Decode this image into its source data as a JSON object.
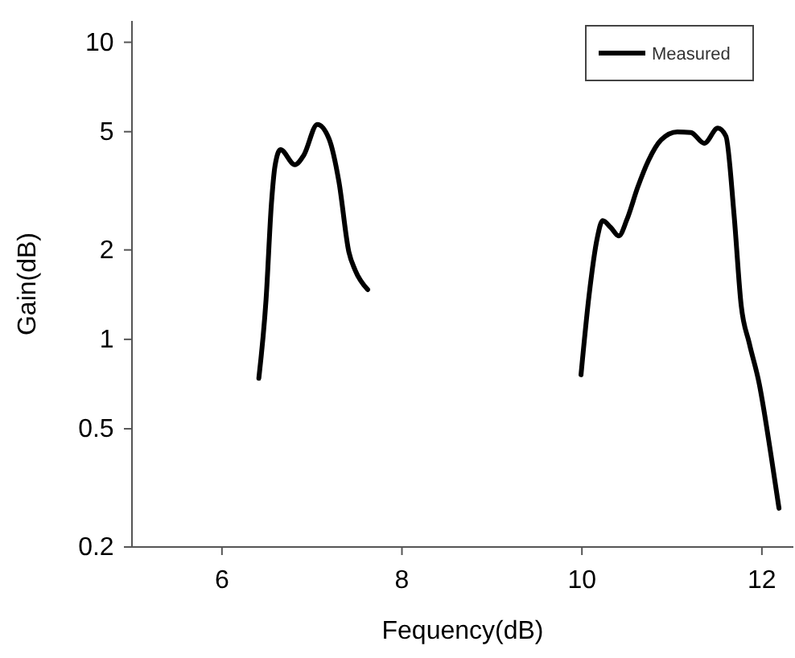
{
  "chart_data": {
    "type": "line",
    "xlabel": "Fequency(dB)",
    "ylabel": "Gain(dB)",
    "log": "y",
    "xlim": [
      5,
      12.35
    ],
    "xticks": [
      6,
      8,
      10,
      12
    ],
    "ylim": [
      0.2,
      11.8
    ],
    "yticks": [
      0.2,
      0.5,
      1,
      2,
      5,
      10
    ],
    "grid": false,
    "legend": "top right",
    "marker": "none",
    "line_style": "solid",
    "series": [
      {
        "name": "Measured",
        "color": "#000000",
        "x": [
          6.41,
          6.49,
          6.55,
          6.59,
          6.65,
          6.81,
          6.91,
          7.06,
          7.19,
          7.3,
          7.41,
          7.48,
          7.62,
          8.8,
          9.99,
          10.08,
          10.17,
          10.23,
          10.32,
          10.41,
          10.5,
          10.62,
          10.74,
          10.88,
          11.06,
          11.21,
          11.36,
          11.51,
          11.6,
          11.69,
          11.77,
          11.86,
          11.97,
          12.1,
          12.19
        ],
        "values": [
          0.74,
          1.36,
          2.87,
          3.84,
          4.35,
          3.87,
          4.17,
          5.29,
          4.73,
          3.39,
          1.97,
          1.71,
          1.47,
          null,
          0.76,
          1.41,
          2.19,
          2.51,
          2.38,
          2.23,
          2.53,
          3.25,
          4.0,
          4.69,
          4.99,
          4.97,
          4.57,
          5.14,
          4.83,
          2.64,
          1.3,
          0.97,
          0.71,
          0.41,
          0.27
        ]
      }
    ]
  }
}
